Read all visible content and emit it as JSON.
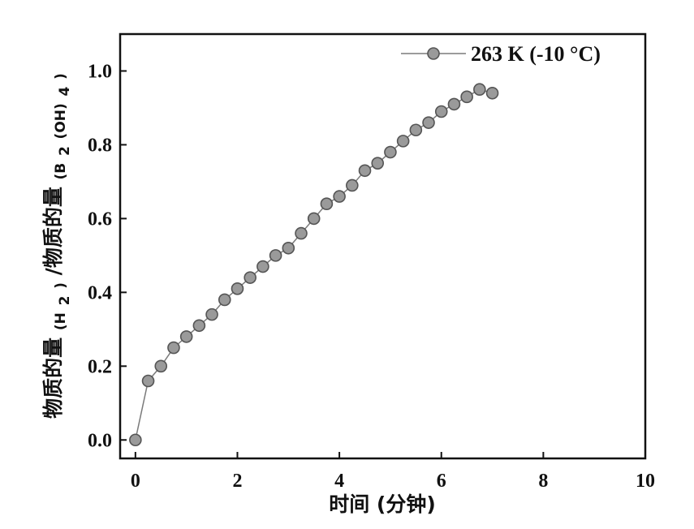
{
  "chart_data": {
    "type": "line",
    "title": "",
    "xlabel": "时间 (分钟)",
    "ylabel": {
      "prefix": "物质的量",
      "sub1": "(H",
      "sub1_digit": "2",
      "sub1_close": ")",
      "middle": "/物质的量",
      "sub2": "(B",
      "sub2_digit": "2",
      "sub2_mid": "(OH)",
      "sub2_digit2": "4",
      "sub2_close": ")"
    },
    "xlim": [
      -0.3,
      10
    ],
    "ylim": [
      -0.05,
      1.1
    ],
    "x_ticks": [
      0,
      2,
      4,
      6,
      8,
      10
    ],
    "x_tick_labels": [
      "0",
      "2",
      "4",
      "6",
      "8",
      "10"
    ],
    "y_ticks": [
      0.0,
      0.2,
      0.4,
      0.6,
      0.8,
      1.0
    ],
    "y_tick_labels": [
      "0.0",
      "0.2",
      "0.4",
      "0.6",
      "0.8",
      "1.0"
    ],
    "grid": false,
    "legend_position": "top-right",
    "series": [
      {
        "name": "263 K (-10 °C)",
        "color": "#9a9a9a",
        "marker": "circle",
        "x": [
          0,
          0.25,
          0.5,
          0.75,
          1.0,
          1.25,
          1.5,
          1.75,
          2.0,
          2.25,
          2.5,
          2.75,
          3.0,
          3.25,
          3.5,
          3.75,
          4.0,
          4.25,
          4.5,
          4.75,
          5.0,
          5.25,
          5.5,
          5.75,
          6.0,
          6.25,
          6.5,
          6.75,
          7.0
        ],
        "y": [
          0.0,
          0.16,
          0.2,
          0.25,
          0.28,
          0.31,
          0.34,
          0.38,
          0.41,
          0.44,
          0.47,
          0.5,
          0.52,
          0.56,
          0.6,
          0.64,
          0.66,
          0.69,
          0.73,
          0.75,
          0.78,
          0.81,
          0.84,
          0.86,
          0.89,
          0.91,
          0.93,
          0.95,
          0.94
        ]
      }
    ]
  }
}
